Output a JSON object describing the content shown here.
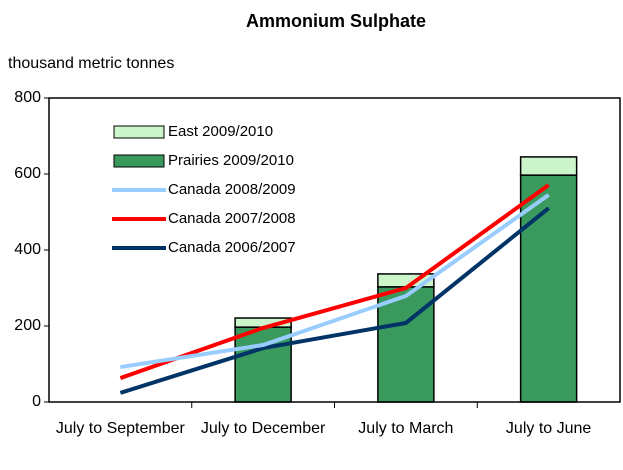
{
  "chart_data": {
    "type": "bar",
    "stacked": true,
    "title": "Ammonium Sulphate",
    "y_label": "thousand metric tonnes",
    "categories": [
      "July to September",
      "July to December",
      "July to March",
      "July to June"
    ],
    "series": [
      {
        "name": "East 2009/2010",
        "type": "bar",
        "color": "#ccf5cc",
        "values": [
          null,
          24,
          34,
          48
        ]
      },
      {
        "name": "Prairies 2009/2010",
        "type": "bar",
        "color": "#3a9a5e",
        "values": [
          null,
          197,
          303,
          597
        ]
      },
      {
        "name": "Canada 2008/2009",
        "type": "line",
        "color": "#99ccff",
        "values": [
          92,
          150,
          279,
          545
        ]
      },
      {
        "name": "Canada 2007/2008",
        "type": "line",
        "color": "#ff0000",
        "values": [
          63,
          195,
          300,
          571
        ]
      },
      {
        "name": "Canada 2006/2007",
        "type": "line",
        "color": "#003366",
        "values": [
          24,
          142,
          208,
          510
        ]
      }
    ],
    "ylim": [
      0,
      800
    ],
    "yticks": [
      0,
      200,
      400,
      600,
      800
    ],
    "grid": false
  }
}
